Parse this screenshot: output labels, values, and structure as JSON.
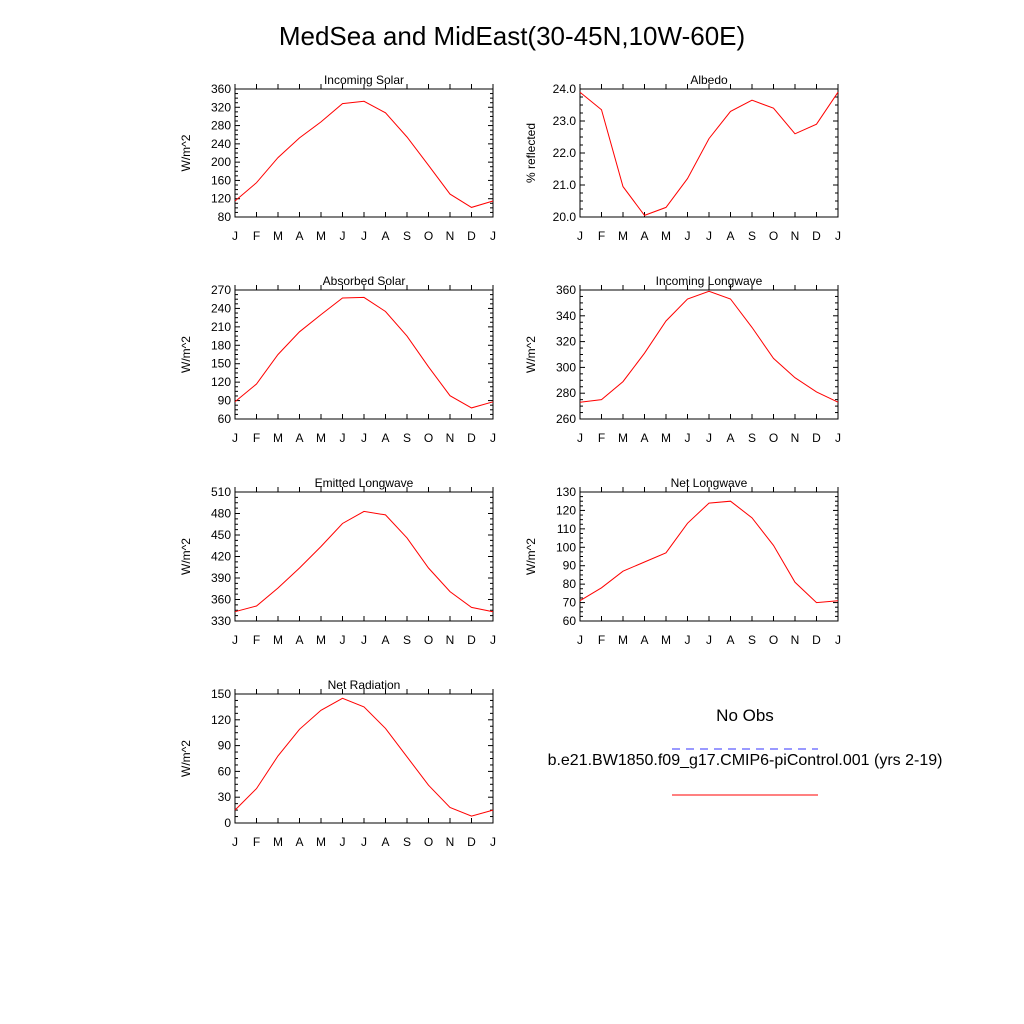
{
  "title": "MedSea and MidEast(30-45N,10W-60E)",
  "colors": {
    "model": "#ff0000",
    "obs": "#3333ff",
    "axis": "#000000"
  },
  "legend": {
    "obs_label": "No Obs",
    "model_label": "b.e21.BW1850.f09_g17.CMIP6-piControl.001 (yrs 2-19)"
  },
  "chart_data": [
    {
      "type": "line",
      "title": "Incoming Solar",
      "ylabel": "W/m^2",
      "xlabel": "",
      "categories": [
        "J",
        "F",
        "M",
        "A",
        "M",
        "J",
        "J",
        "A",
        "S",
        "O",
        "N",
        "D",
        "J"
      ],
      "ylim": [
        80,
        360
      ],
      "yticks": [
        "360",
        "320",
        "280",
        "240",
        "200",
        "160",
        "120",
        "80"
      ],
      "series": [
        {
          "values": [
            115,
            155,
            210,
            253,
            288,
            328,
            333,
            308,
            255,
            193,
            130,
            101,
            115
          ]
        }
      ]
    },
    {
      "type": "line",
      "title": "Albedo",
      "ylabel": "% reflected",
      "xlabel": "",
      "categories": [
        "J",
        "F",
        "M",
        "A",
        "M",
        "J",
        "J",
        "A",
        "S",
        "O",
        "N",
        "D",
        "J"
      ],
      "ylim": [
        20.0,
        24.0
      ],
      "yticks": [
        "24.0",
        "23.0",
        "22.0",
        "21.0",
        "20.0"
      ],
      "series": [
        {
          "values": [
            23.9,
            23.35,
            20.95,
            20.05,
            20.3,
            21.2,
            22.45,
            23.3,
            23.65,
            23.4,
            22.6,
            22.9,
            23.9
          ]
        }
      ]
    },
    {
      "type": "line",
      "title": "Absorbed Solar",
      "ylabel": "W/m^2",
      "xlabel": "",
      "categories": [
        "J",
        "F",
        "M",
        "A",
        "M",
        "J",
        "J",
        "A",
        "S",
        "O",
        "N",
        "D",
        "J"
      ],
      "ylim": [
        60,
        270
      ],
      "yticks": [
        "270",
        "240",
        "210",
        "180",
        "150",
        "120",
        "90",
        "60"
      ],
      "series": [
        {
          "values": [
            88,
            117,
            165,
            202,
            230,
            257,
            258,
            235,
            195,
            145,
            98,
            78,
            88
          ]
        }
      ]
    },
    {
      "type": "line",
      "title": "Incoming Longwave",
      "ylabel": "W/m^2",
      "xlabel": "",
      "categories": [
        "J",
        "F",
        "M",
        "A",
        "M",
        "J",
        "J",
        "A",
        "S",
        "O",
        "N",
        "D",
        "J"
      ],
      "ylim": [
        260,
        360
      ],
      "yticks": [
        "360",
        "340",
        "320",
        "300",
        "280",
        "260"
      ],
      "series": [
        {
          "values": [
            273,
            275,
            289,
            311,
            336,
            353,
            359,
            353,
            331,
            307,
            292,
            281,
            273
          ]
        }
      ]
    },
    {
      "type": "line",
      "title": "Emitted Longwave",
      "ylabel": "W/m^2",
      "xlabel": "",
      "categories": [
        "J",
        "F",
        "M",
        "A",
        "M",
        "J",
        "J",
        "A",
        "S",
        "O",
        "N",
        "D",
        "J"
      ],
      "ylim": [
        330,
        510
      ],
      "yticks": [
        "510",
        "480",
        "450",
        "420",
        "390",
        "360",
        "330"
      ],
      "series": [
        {
          "values": [
            343,
            351,
            376,
            404,
            434,
            466,
            483,
            478,
            446,
            404,
            371,
            349,
            343
          ]
        }
      ]
    },
    {
      "type": "line",
      "title": "Net Longwave",
      "ylabel": "W/m^2",
      "xlabel": "",
      "categories": [
        "J",
        "F",
        "M",
        "A",
        "M",
        "J",
        "J",
        "A",
        "S",
        "O",
        "N",
        "D",
        "J"
      ],
      "ylim": [
        60,
        130
      ],
      "yticks": [
        "130",
        "120",
        "110",
        "100",
        "90",
        "80",
        "70",
        "60"
      ],
      "series": [
        {
          "values": [
            71,
            78,
            87,
            92,
            97,
            113,
            124,
            125,
            116,
            101,
            81,
            70,
            71
          ]
        }
      ]
    },
    {
      "type": "line",
      "title": "Net Radiation",
      "ylabel": "W/m^2",
      "xlabel": "",
      "categories": [
        "J",
        "F",
        "M",
        "A",
        "M",
        "J",
        "J",
        "A",
        "S",
        "O",
        "N",
        "D",
        "J"
      ],
      "ylim": [
        0,
        150
      ],
      "yticks": [
        "150",
        "120",
        "90",
        "60",
        "30",
        "0"
      ],
      "series": [
        {
          "values": [
            15,
            40,
            78,
            109,
            131,
            145,
            135,
            110,
            77,
            44,
            18,
            8,
            15
          ]
        }
      ]
    }
  ]
}
